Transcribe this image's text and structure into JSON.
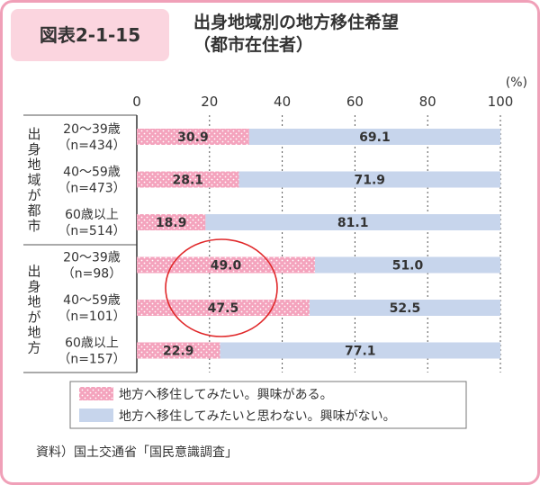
{
  "figure_label": "図表2-1-15",
  "title_line1": "出身地域別の地方移住希望",
  "title_line2": "（都市在住者）",
  "source": "資料）国土交通省「国民意識調査」",
  "colors": {
    "migrate": "#f4a3bd",
    "not_migrate": "#c7d5ec",
    "circle": "#e0282a"
  },
  "chart_data": {
    "type": "bar",
    "stacked": true,
    "orientation": "horizontal",
    "unit": "(%)",
    "xlim": [
      0,
      100
    ],
    "xticks": [
      "0",
      "20",
      "40",
      "60",
      "80",
      "100"
    ],
    "groups": [
      {
        "label": "出身地域が都市",
        "rows": [
          0,
          1,
          2
        ]
      },
      {
        "label": "出身地が地方",
        "rows": [
          3,
          4,
          5
        ]
      }
    ],
    "categories": [
      {
        "age": "20～39歳",
        "n": "（n=434）"
      },
      {
        "age": "40～59歳",
        "n": "（n=473）"
      },
      {
        "age": "60歳以上",
        "n": "（n=514）"
      },
      {
        "age": "20～39歳",
        "n": "（n=98）"
      },
      {
        "age": "40～59歳",
        "n": "（n=101）"
      },
      {
        "age": "60歳以上",
        "n": "（n=157）"
      }
    ],
    "series": [
      {
        "name": "地方へ移住してみたい。興味がある。",
        "values": [
          30.9,
          28.1,
          18.9,
          49.0,
          47.5,
          22.9
        ],
        "labels": [
          "30.9",
          "28.1",
          "18.9",
          "49.0",
          "47.5",
          "22.9"
        ]
      },
      {
        "name": "地方へ移住してみたいと思わない。興味がない。",
        "values": [
          69.1,
          71.9,
          81.1,
          51.0,
          52.5,
          77.1
        ],
        "labels": [
          "69.1",
          "71.9",
          "81.1",
          "51.0",
          "52.5",
          "77.1"
        ]
      }
    ]
  }
}
